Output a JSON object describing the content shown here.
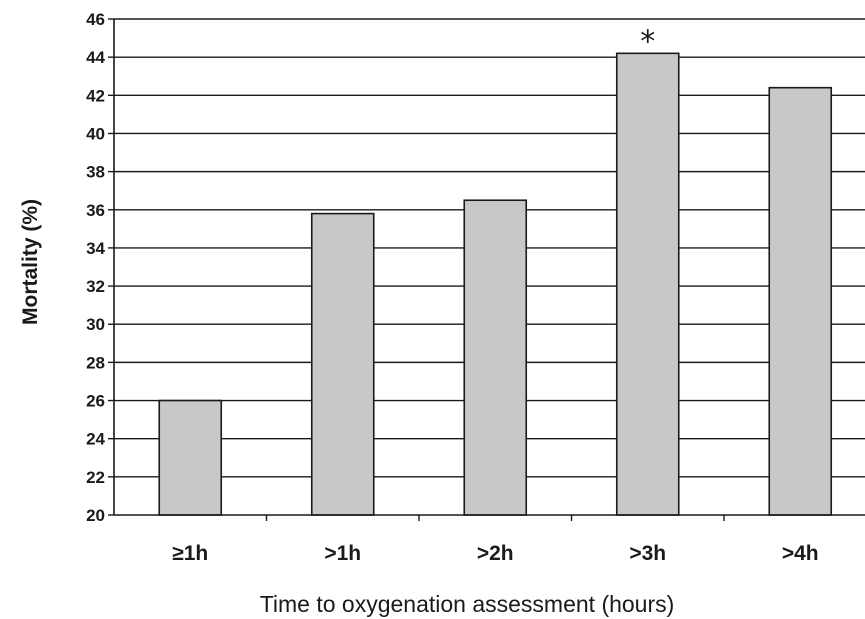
{
  "chart_data": {
    "type": "bar",
    "title": "",
    "xlabel": "Time to oxygenation assessment (hours)",
    "ylabel": "Mortality (%)",
    "categories": [
      "≥1h",
      ">1h",
      ">2h",
      ">3h",
      ">4h"
    ],
    "values": [
      26.0,
      35.8,
      36.5,
      44.2,
      42.4
    ],
    "ylim": [
      20,
      46
    ],
    "yticks": [
      20,
      22,
      24,
      26,
      28,
      30,
      32,
      34,
      36,
      38,
      40,
      42,
      44,
      46
    ],
    "grid": true,
    "bar_color": "#c8c8c8",
    "annotations": [
      {
        "category": ">3h",
        "text": "*"
      }
    ]
  }
}
